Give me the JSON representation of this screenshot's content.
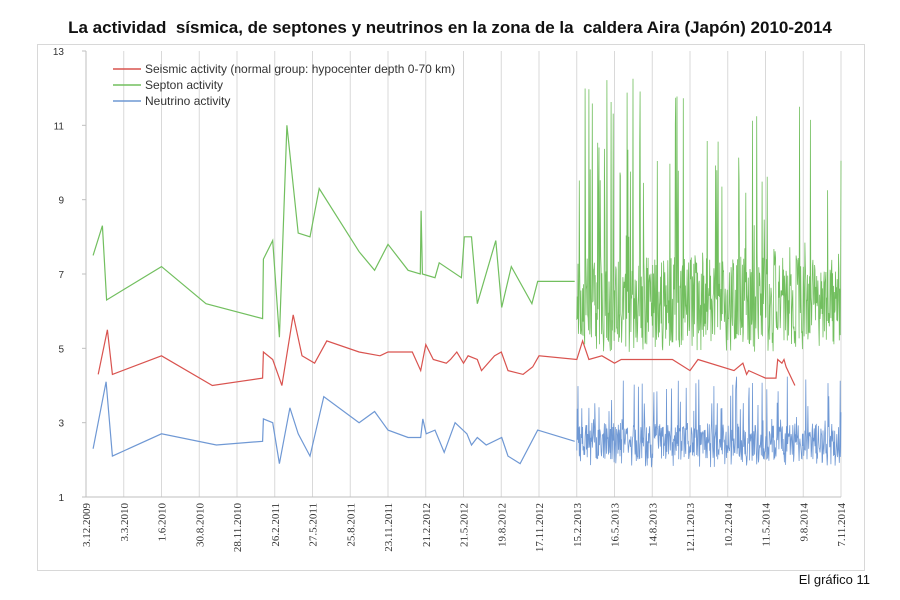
{
  "page": {
    "title": "La actividad  sísmica, de septones y neutrinos en la zona de la  caldera Aira (Japón) 2010-2014",
    "caption": "El gráfico 11"
  },
  "chart_data": {
    "type": "line",
    "title": "La actividad  sísmica, de septones y neutrinos en la zona de la  caldera Aira (Japón) 2010-2014",
    "xlabel": "",
    "ylabel": "",
    "ylim": [
      1,
      13
    ],
    "yticks": [
      1,
      3,
      5,
      7,
      9,
      11,
      13
    ],
    "xlim": [
      "2009-12-03",
      "2014-11-07"
    ],
    "xticks": [
      {
        "label": "3.12.2009",
        "date": "2009-12-03"
      },
      {
        "label": "3.3.2010",
        "date": "2010-03-03"
      },
      {
        "label": "1.6.2010",
        "date": "2010-06-01"
      },
      {
        "label": "30.8.2010",
        "date": "2010-08-30"
      },
      {
        "label": "28.11.2010",
        "date": "2010-11-28"
      },
      {
        "label": "26.2.2011",
        "date": "2011-02-26"
      },
      {
        "label": "27.5.2011",
        "date": "2011-05-27"
      },
      {
        "label": "25.8.2011",
        "date": "2011-08-25"
      },
      {
        "label": "23.11.2011",
        "date": "2011-11-23"
      },
      {
        "label": "21.2.2012",
        "date": "2012-02-21"
      },
      {
        "label": "21.5.2012",
        "date": "2012-05-21"
      },
      {
        "label": "19.8.2012",
        "date": "2012-08-19"
      },
      {
        "label": "17.11.2012",
        "date": "2012-11-17"
      },
      {
        "label": "15.2.2013",
        "date": "2013-02-15"
      },
      {
        "label": "16.5.2013",
        "date": "2013-05-16"
      },
      {
        "label": "14.8.2013",
        "date": "2013-08-14"
      },
      {
        "label": "12.11.2013",
        "date": "2013-11-12"
      },
      {
        "label": "10.2.2014",
        "date": "2014-02-10"
      },
      {
        "label": "11.5.2014",
        "date": "2014-05-11"
      },
      {
        "label": "9.8.2014",
        "date": "2014-08-09"
      },
      {
        "label": "7.11.2014",
        "date": "2014-11-07"
      }
    ],
    "grid": {
      "vertical": true,
      "horizontal": false
    },
    "legend_position": "top-left",
    "series": [
      {
        "name": "Seismic activity (normal group: hypocenter depth 0-70 km)",
        "color": "#d9534f",
        "points": [
          [
            "2010-01-01",
            4.3
          ],
          [
            "2010-01-23",
            5.5
          ],
          [
            "2010-02-04",
            4.3
          ],
          [
            "2010-06-01",
            4.8
          ],
          [
            "2010-09-30",
            4.0
          ],
          [
            "2011-01-28",
            4.2
          ],
          [
            "2011-01-30",
            4.9
          ],
          [
            "2011-02-21",
            4.7
          ],
          [
            "2011-03-15",
            4.0
          ],
          [
            "2011-04-11",
            5.9
          ],
          [
            "2011-05-02",
            4.8
          ],
          [
            "2011-06-01",
            4.6
          ],
          [
            "2011-06-30",
            5.2
          ],
          [
            "2011-09-15",
            4.9
          ],
          [
            "2011-11-04",
            4.8
          ],
          [
            "2011-11-23",
            4.9
          ],
          [
            "2012-01-20",
            4.9
          ],
          [
            "2012-02-09",
            4.4
          ],
          [
            "2012-02-21",
            5.1
          ],
          [
            "2012-03-10",
            4.7
          ],
          [
            "2012-04-10",
            4.6
          ],
          [
            "2012-04-20",
            4.7
          ],
          [
            "2012-05-05",
            4.9
          ],
          [
            "2012-05-21",
            4.6
          ],
          [
            "2012-06-01",
            4.8
          ],
          [
            "2012-06-23",
            4.7
          ],
          [
            "2012-07-03",
            4.4
          ],
          [
            "2012-08-03",
            4.8
          ],
          [
            "2012-08-19",
            4.9
          ],
          [
            "2012-09-04",
            4.4
          ],
          [
            "2012-10-10",
            4.3
          ],
          [
            "2012-11-02",
            4.5
          ],
          [
            "2012-11-17",
            4.8
          ],
          [
            "2013-02-15",
            4.7
          ],
          [
            "2013-03-01",
            5.2
          ],
          [
            "2013-03-16",
            4.7
          ],
          [
            "2013-04-16",
            4.8
          ],
          [
            "2013-05-16",
            4.6
          ],
          [
            "2013-06-01",
            4.7
          ],
          [
            "2013-10-01",
            4.7
          ],
          [
            "2013-11-12",
            4.4
          ],
          [
            "2013-12-01",
            4.7
          ],
          [
            "2014-02-25",
            4.4
          ],
          [
            "2014-03-18",
            4.6
          ],
          [
            "2014-03-27",
            4.3
          ],
          [
            "2014-04-01",
            4.4
          ],
          [
            "2014-05-11",
            4.2
          ],
          [
            "2014-06-05",
            4.2
          ],
          [
            "2014-06-09",
            4.7
          ],
          [
            "2014-06-19",
            4.6
          ],
          [
            "2014-06-24",
            4.7
          ],
          [
            "2014-06-29",
            4.5
          ],
          [
            "2014-07-20",
            4.0
          ]
        ]
      },
      {
        "name": "Septon activity",
        "color": "#72bf5f",
        "points": [
          [
            "2009-12-20",
            7.5
          ],
          [
            "2010-01-11",
            8.3
          ],
          [
            "2010-01-21",
            6.3
          ],
          [
            "2010-06-01",
            7.2
          ],
          [
            "2010-09-15",
            6.2
          ],
          [
            "2011-01-28",
            5.8
          ],
          [
            "2011-01-30",
            7.4
          ],
          [
            "2011-02-21",
            7.9
          ],
          [
            "2011-03-09",
            5.3
          ],
          [
            "2011-03-27",
            11.0
          ],
          [
            "2011-04-23",
            8.1
          ],
          [
            "2011-05-21",
            8.0
          ],
          [
            "2011-06-12",
            9.3
          ],
          [
            "2011-09-15",
            7.6
          ],
          [
            "2011-10-22",
            7.1
          ],
          [
            "2011-11-23",
            7.8
          ],
          [
            "2012-01-10",
            7.1
          ],
          [
            "2012-02-08",
            7.0
          ],
          [
            "2012-02-10",
            8.7
          ],
          [
            "2012-02-13",
            7.0
          ],
          [
            "2012-03-14",
            6.9
          ],
          [
            "2012-03-24",
            7.3
          ],
          [
            "2012-05-16",
            6.9
          ],
          [
            "2012-05-23",
            8.0
          ],
          [
            "2012-06-09",
            8.0
          ],
          [
            "2012-06-23",
            6.2
          ],
          [
            "2012-08-06",
            7.9
          ],
          [
            "2012-08-20",
            6.1
          ],
          [
            "2012-09-12",
            7.2
          ],
          [
            "2012-10-31",
            6.2
          ],
          [
            "2012-11-14",
            6.8
          ],
          [
            "2013-02-10",
            6.8
          ]
        ],
        "dense_segment": {
          "start": "2013-02-15",
          "end": "2014-11-07",
          "min": 4.9,
          "max": 12.3,
          "typical_range": [
            5.2,
            7.5
          ]
        }
      },
      {
        "name": "Neutrino activity",
        "color": "#6f98d4",
        "points": [
          [
            "2009-12-20",
            2.3
          ],
          [
            "2010-01-20",
            4.1
          ],
          [
            "2010-02-04",
            2.1
          ],
          [
            "2010-06-01",
            2.7
          ],
          [
            "2010-10-10",
            2.4
          ],
          [
            "2011-01-28",
            2.5
          ],
          [
            "2011-01-30",
            3.1
          ],
          [
            "2011-02-21",
            3.0
          ],
          [
            "2011-03-09",
            1.9
          ],
          [
            "2011-04-03",
            3.4
          ],
          [
            "2011-04-23",
            2.7
          ],
          [
            "2011-05-21",
            2.1
          ],
          [
            "2011-06-23",
            3.7
          ],
          [
            "2011-09-15",
            3.0
          ],
          [
            "2011-10-22",
            3.3
          ],
          [
            "2011-11-23",
            2.8
          ],
          [
            "2012-01-10",
            2.6
          ],
          [
            "2012-02-09",
            2.6
          ],
          [
            "2012-02-14",
            3.1
          ],
          [
            "2012-02-22",
            2.7
          ],
          [
            "2012-03-14",
            2.8
          ],
          [
            "2012-04-05",
            2.2
          ],
          [
            "2012-05-01",
            3.0
          ],
          [
            "2012-05-29",
            2.7
          ],
          [
            "2012-06-09",
            2.4
          ],
          [
            "2012-06-23",
            2.6
          ],
          [
            "2012-07-14",
            2.4
          ],
          [
            "2012-08-20",
            2.6
          ],
          [
            "2012-09-04",
            2.1
          ],
          [
            "2012-10-03",
            1.9
          ],
          [
            "2012-11-14",
            2.8
          ],
          [
            "2013-02-10",
            2.5
          ]
        ],
        "dense_segment": {
          "start": "2013-02-15",
          "end": "2014-11-07",
          "min": 1.8,
          "max": 4.3,
          "typical_range": [
            2.0,
            3.0
          ]
        }
      }
    ]
  }
}
